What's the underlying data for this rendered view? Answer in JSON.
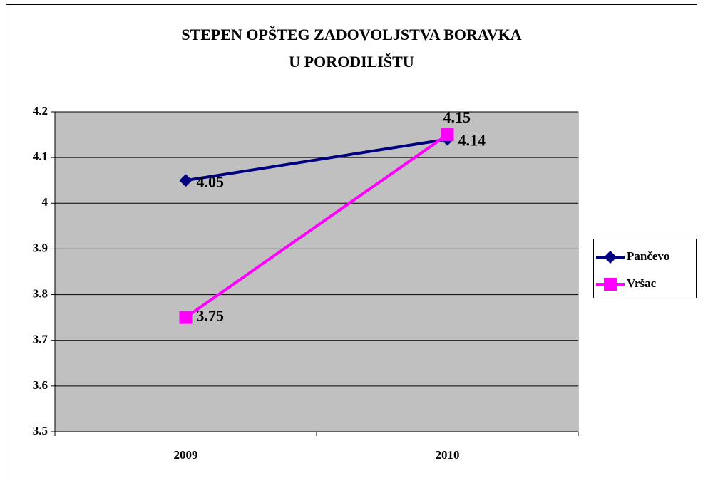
{
  "chart_data": {
    "type": "line",
    "title": "STEPEN OPŠTEG ZADOVOLJSTVA BORAVKA U PORODILIŠTU",
    "categories": [
      "2009",
      "2010"
    ],
    "series": [
      {
        "name": "Pančevo",
        "color": "#000080",
        "marker": "diamond",
        "values": [
          4.05,
          4.14
        ]
      },
      {
        "name": "Vršac",
        "color": "#ff00ff",
        "marker": "square",
        "values": [
          3.75,
          4.15
        ]
      }
    ],
    "ylim": [
      3.5,
      4.2
    ],
    "yticks": [
      3.5,
      3.6,
      3.7,
      3.8,
      3.9,
      4,
      4.1,
      4.2
    ],
    "grid": true,
    "plot_background": "#c0c0c0",
    "legend": "right"
  }
}
